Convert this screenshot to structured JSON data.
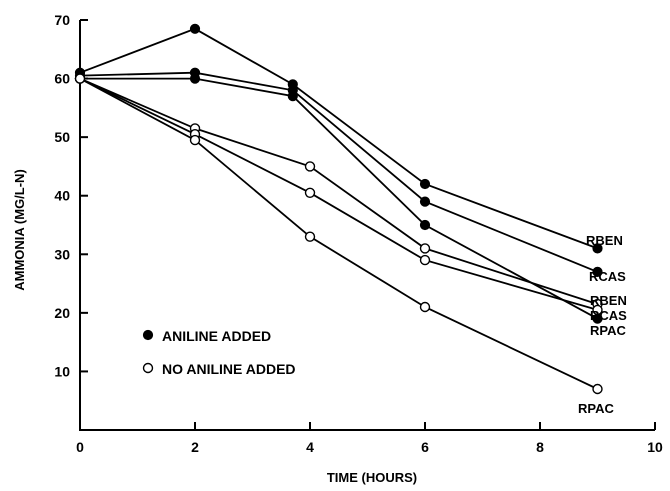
{
  "chart_data": {
    "type": "line",
    "title": "",
    "xlabel": "TIME (HOURS)",
    "ylabel": "AMMONIA (MG/L-N)",
    "xlim": [
      0,
      10
    ],
    "ylim": [
      0,
      70
    ],
    "x_ticks": [
      "0",
      "2",
      "4",
      "6",
      "8",
      "10"
    ],
    "y_ticks": [
      "10",
      "20",
      "30",
      "40",
      "50",
      "60",
      "70"
    ],
    "grid": false,
    "legend": [
      {
        "marker": "filled",
        "label": "ANILINE ADDED"
      },
      {
        "marker": "open",
        "label": "NO ANILINE ADDED"
      }
    ],
    "series": [
      {
        "name": "RBEN",
        "marker": "filled",
        "x": [
          0,
          2,
          3.7,
          6,
          9
        ],
        "y": [
          61,
          68.5,
          59,
          42,
          31
        ]
      },
      {
        "name": "RCAS",
        "marker": "filled",
        "x": [
          0,
          2,
          3.7,
          6,
          9
        ],
        "y": [
          60.5,
          61,
          58,
          39,
          27
        ]
      },
      {
        "name": "RPAC",
        "marker": "filled",
        "x": [
          0,
          2,
          3.7,
          6,
          9
        ],
        "y": [
          60,
          60,
          57,
          35,
          19
        ]
      },
      {
        "name": "RBEN",
        "marker": "open",
        "x": [
          0,
          2,
          4,
          6,
          9
        ],
        "y": [
          60,
          51.5,
          45,
          31,
          21.5
        ]
      },
      {
        "name": "RCAS",
        "marker": "open",
        "x": [
          0,
          2,
          4,
          6,
          9
        ],
        "y": [
          60,
          50.5,
          40.5,
          29,
          20.5
        ]
      },
      {
        "name": "RPAC",
        "marker": "open",
        "x": [
          0,
          2,
          4,
          6,
          9
        ],
        "y": [
          60,
          49.5,
          33,
          21,
          7
        ]
      }
    ]
  }
}
